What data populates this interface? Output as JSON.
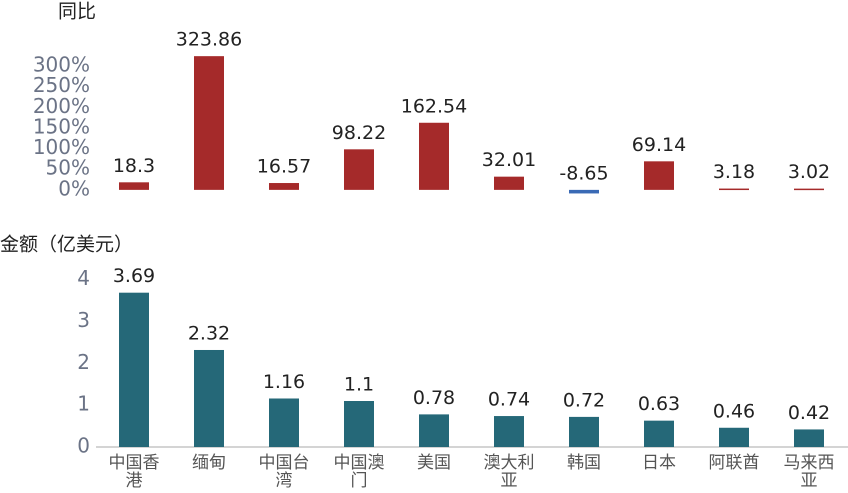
{
  "chart_data": [
    {
      "type": "bar",
      "title": "同比",
      "values": [
        18.3,
        323.86,
        16.57,
        98.22,
        162.54,
        32.01,
        -8.65,
        69.14,
        3.18,
        3.02
      ],
      "color": "#a52a2a",
      "negative_color": "#3a6ab5",
      "ylim": [
        -10,
        340
      ],
      "yticks": [
        {
          "value": 0,
          "label": "0%"
        },
        {
          "value": 50,
          "label": "50%"
        },
        {
          "value": 100,
          "label": "100%"
        },
        {
          "value": 150,
          "label": "150%"
        },
        {
          "value": 200,
          "label": "200%"
        },
        {
          "value": 250,
          "label": "250%"
        },
        {
          "value": 300,
          "label": "300%"
        }
      ]
    },
    {
      "type": "bar",
      "title": "金额（亿美元）",
      "categories": [
        "中国香港",
        "缅甸",
        "中国台湾",
        "中国澳门",
        "美国",
        "澳大利亚",
        "韩国",
        "日本",
        "阿联酋",
        "马来西亚"
      ],
      "values": [
        3.69,
        2.32,
        1.16,
        1.1,
        0.78,
        0.74,
        0.72,
        0.63,
        0.46,
        0.42
      ],
      "color": "#256878",
      "ylim": [
        0,
        4.4
      ],
      "yticks": [
        0,
        1,
        2,
        3,
        4
      ]
    }
  ]
}
